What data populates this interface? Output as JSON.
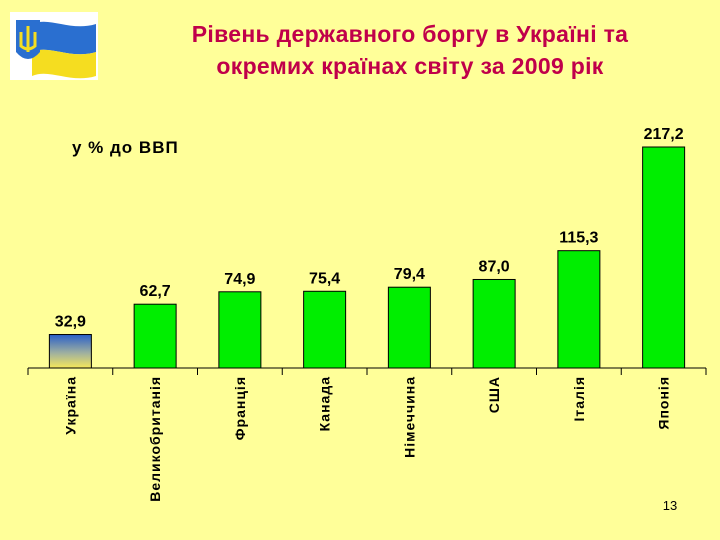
{
  "slide": {
    "title_line1": "Рівень державного боргу в Україні та",
    "title_line2": "окремих країнах світу за 2009 рік",
    "unit_label": "у % до ВВП",
    "page_number": "13",
    "logo_icon": "ukraine-flag-trident-icon"
  },
  "colors": {
    "title": "#c0004a",
    "background": "#ffff99",
    "bar_green": "#00ee00",
    "ukraine_blue": "#2a5fc8",
    "ukraine_yellow": "#f5e85a"
  },
  "chart_data": {
    "type": "bar",
    "categories": [
      "Україна",
      "Великобританія",
      "Франція",
      "Канада",
      "Німеччина",
      "США",
      "Італія",
      "Японія"
    ],
    "values": [
      32.9,
      62.7,
      74.9,
      75.4,
      79.4,
      87.0,
      115.3,
      217.2
    ],
    "value_labels": [
      "32,9",
      "62,7",
      "74,9",
      "75,4",
      "79,4",
      "87,0",
      "115,3",
      "217,2"
    ],
    "ylim": [
      0,
      217.2
    ],
    "grid": false,
    "legend": "none",
    "highlight": "Україна"
  }
}
